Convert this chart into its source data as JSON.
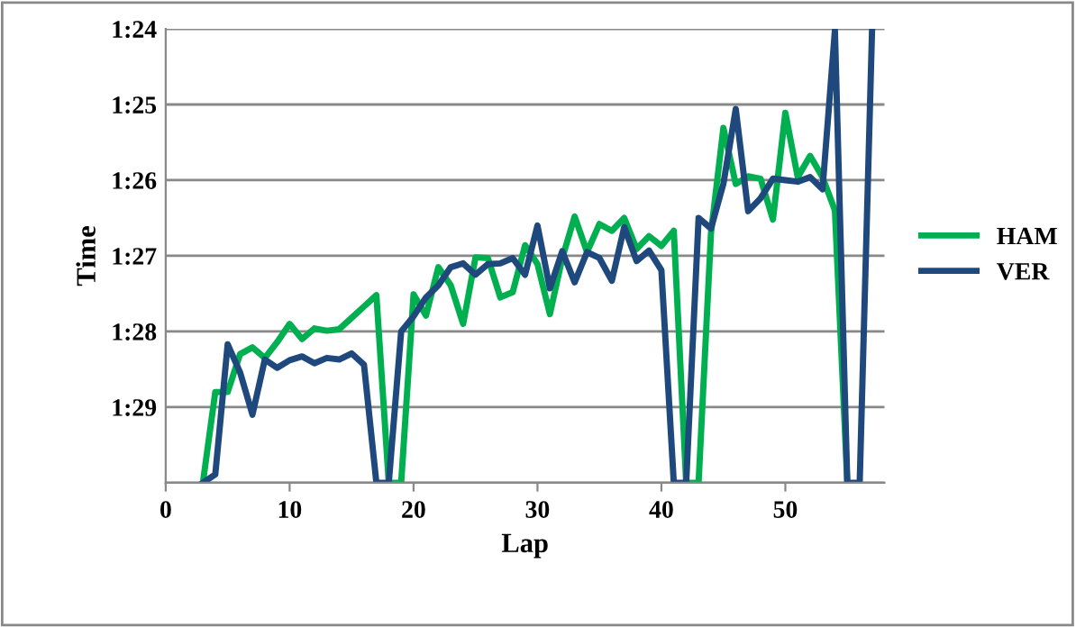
{
  "chart_data": {
    "type": "line",
    "xlabel": "Lap",
    "ylabel": "Time",
    "x": [
      3,
      4,
      5,
      6,
      7,
      8,
      9,
      10,
      11,
      12,
      13,
      14,
      15,
      16,
      17,
      18,
      19,
      20,
      21,
      22,
      23,
      24,
      25,
      26,
      27,
      28,
      29,
      30,
      31,
      32,
      33,
      34,
      35,
      36,
      37,
      38,
      39,
      40,
      41,
      42,
      43,
      44,
      45,
      46,
      47,
      48,
      49,
      50,
      51,
      52,
      53,
      54,
      55,
      56,
      57
    ],
    "series": [
      {
        "name": "HAM",
        "color": "#00b050",
        "values": [
          90,
          88.8,
          88.8,
          88.3,
          88.21,
          88.35,
          88.14,
          87.9,
          88.1,
          87.96,
          87.99,
          87.97,
          87.82,
          87.67,
          87.52,
          90,
          90,
          87.51,
          87.79,
          87.15,
          87.39,
          87.9,
          87.02,
          87.03,
          87.55,
          87.48,
          86.86,
          87.11,
          87.77,
          87.03,
          86.48,
          86.95,
          86.58,
          86.67,
          86.5,
          86.91,
          86.74,
          86.87,
          86.67,
          90,
          90,
          86.7,
          85.31,
          86.05,
          85.95,
          85.98,
          86.52,
          85.11,
          85.96,
          85.68,
          85.96,
          86.4,
          90,
          null,
          null
        ]
      },
      {
        "name": "VER",
        "color": "#1f497d",
        "values": [
          90,
          89.89,
          88.17,
          88.54,
          89.1,
          88.37,
          88.48,
          88.38,
          88.33,
          88.42,
          88.35,
          88.37,
          88.29,
          88.44,
          90,
          90,
          88.0,
          87.8,
          87.55,
          87.39,
          87.15,
          87.1,
          87.25,
          87.11,
          87.1,
          87.03,
          87.25,
          86.6,
          87.43,
          86.94,
          87.35,
          86.95,
          87.03,
          87.33,
          86.62,
          87.07,
          86.93,
          87.19,
          90,
          90,
          86.5,
          86.64,
          86.05,
          85.06,
          86.41,
          86.24,
          85.98,
          86.0,
          86.02,
          85.96,
          86.12,
          84.02,
          90,
          90,
          84
        ]
      }
    ],
    "xlim": [
      0,
      58
    ],
    "xticks": [
      0,
      10,
      20,
      30,
      40,
      50
    ],
    "ylim": [
      90,
      84
    ],
    "yticks": [
      {
        "value": 84,
        "label": "1:24"
      },
      {
        "value": 85,
        "label": "1:25"
      },
      {
        "value": 86,
        "label": "1:26"
      },
      {
        "value": 87,
        "label": "1:27"
      },
      {
        "value": 88,
        "label": "1:28"
      },
      {
        "value": 89,
        "label": "1:29"
      },
      {
        "value": 90,
        "label": null
      }
    ],
    "grid": "y",
    "legend": "right",
    "marker": "none",
    "line_style": "solid"
  }
}
